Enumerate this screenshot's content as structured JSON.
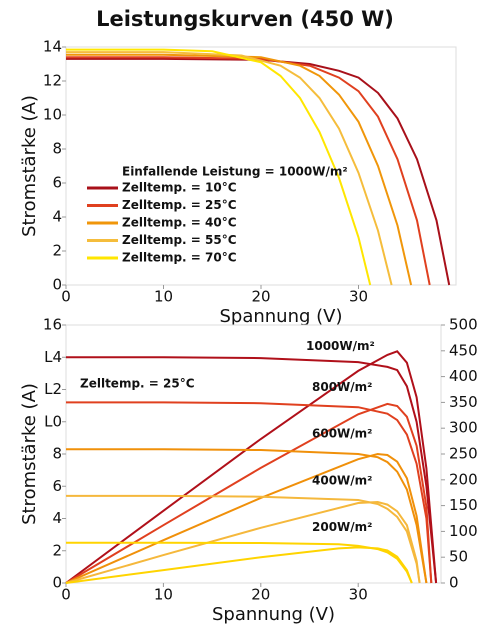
{
  "chart_data": [
    {
      "type": "line",
      "title": "Leistungskurven (450 W)",
      "x_label": "Spannung (V)",
      "y_label": "Stromstärke (A)",
      "xlim": [
        0,
        40
      ],
      "xticks": [
        0,
        10,
        20,
        30
      ],
      "ylim": [
        0,
        14
      ],
      "yticks": [
        0,
        2,
        4,
        6,
        8,
        10,
        12,
        14
      ],
      "legend_title": "Einfallende Leistung = 1000W/m²",
      "legend": "lower-left",
      "series": [
        {
          "name": "Zelltemp. = 10°C",
          "color": "#a8101a",
          "x": [
            0,
            10,
            20,
            25,
            28,
            30,
            32,
            34,
            36,
            38,
            39.3
          ],
          "values": [
            13.3,
            13.3,
            13.25,
            13.0,
            12.6,
            12.2,
            11.3,
            9.8,
            7.4,
            3.8,
            0
          ]
        },
        {
          "name": "Zelltemp. = 25°C",
          "color": "#e0401f",
          "x": [
            0,
            10,
            20,
            25,
            28,
            30,
            32,
            34,
            36,
            37.3
          ],
          "values": [
            13.4,
            13.4,
            13.3,
            12.9,
            12.2,
            11.4,
            9.9,
            7.4,
            3.8,
            0
          ]
        },
        {
          "name": "Zelltemp. = 40°C",
          "color": "#f0960a",
          "x": [
            0,
            10,
            20,
            24,
            26,
            28,
            30,
            32,
            34,
            35.4
          ],
          "values": [
            13.55,
            13.55,
            13.4,
            12.9,
            12.3,
            11.2,
            9.6,
            7.0,
            3.5,
            0
          ]
        },
        {
          "name": "Zelltemp. = 55°C",
          "color": "#f5bd3c",
          "x": [
            0,
            10,
            18,
            22,
            24,
            26,
            28,
            30,
            32,
            33.4
          ],
          "values": [
            13.7,
            13.7,
            13.5,
            12.9,
            12.2,
            11.0,
            9.2,
            6.6,
            3.2,
            0
          ]
        },
        {
          "name": "Zelltemp. = 70°C",
          "color": "#ffe600",
          "x": [
            0,
            10,
            15,
            20,
            22,
            24,
            26,
            28,
            30,
            31.2
          ],
          "values": [
            13.85,
            13.85,
            13.75,
            13.1,
            12.3,
            11.0,
            9.0,
            6.3,
            2.8,
            0
          ]
        }
      ]
    },
    {
      "type": "line",
      "x_label": "Spannung (V)",
      "y_label": "Stromstärke (A)",
      "annotation": "Zelltemp. = 25°C",
      "xlim": [
        0,
        38.5
      ],
      "xticks": [
        0,
        10,
        20,
        30
      ],
      "ylim": [
        0,
        16
      ],
      "yticks": [
        0,
        2,
        4,
        6,
        8,
        {
          "value": 10,
          "label": "L0"
        },
        {
          "value": 12,
          "label": "L2"
        },
        {
          "value": 14,
          "label": "L4"
        },
        16
      ],
      "y2lim": [
        0,
        500
      ],
      "y2ticks": [
        0,
        50,
        100,
        150,
        200,
        250,
        300,
        350,
        400,
        450,
        500
      ],
      "series": [
        {
          "name": "1000W/m²",
          "color": "#b0101a",
          "x": [
            0,
            10,
            20,
            30,
            33,
            34,
            35,
            36,
            37,
            38
          ],
          "values": [
            14,
            14,
            13.95,
            13.7,
            13.4,
            13.2,
            12.2,
            10,
            6,
            0
          ]
        },
        {
          "color": "#b0101a",
          "axis": "y2",
          "x": [
            0,
            10,
            20,
            30,
            33,
            34,
            35,
            36,
            37,
            38
          ],
          "values": [
            0,
            140,
            279,
            411,
            442,
            449,
            427,
            360,
            222,
            0
          ]
        },
        {
          "name": "800W/m²",
          "color": "#e0401f",
          "x": [
            0,
            10,
            20,
            30,
            33,
            34,
            35,
            36,
            37,
            37.5
          ],
          "values": [
            11.2,
            11.2,
            11.15,
            10.9,
            10.5,
            10.1,
            9.2,
            7.4,
            4,
            0
          ]
        },
        {
          "color": "#e0401f",
          "axis": "y2",
          "x": [
            0,
            10,
            20,
            30,
            33,
            34,
            35,
            36,
            37,
            37.5
          ],
          "values": [
            0,
            112,
            223,
            327,
            347,
            343,
            322,
            266,
            148,
            0
          ]
        },
        {
          "name": "600W/m²",
          "color": "#f0900a",
          "x": [
            0,
            10,
            20,
            30,
            32,
            33,
            34,
            35,
            36,
            37
          ],
          "values": [
            8.3,
            8.3,
            8.25,
            8.0,
            7.8,
            7.5,
            6.9,
            5.8,
            3.6,
            0
          ]
        },
        {
          "color": "#f0900a",
          "axis": "y2",
          "x": [
            0,
            10,
            20,
            30,
            32,
            33,
            34,
            35,
            36,
            37
          ],
          "values": [
            0,
            83,
            165,
            240,
            250,
            248,
            235,
            203,
            130,
            0
          ]
        },
        {
          "name": "400W/m²",
          "color": "#f5b83c",
          "x": [
            0,
            10,
            20,
            30,
            32,
            33,
            34,
            35,
            36,
            36.3
          ],
          "values": [
            5.4,
            5.4,
            5.35,
            5.15,
            4.9,
            4.6,
            4.1,
            3.2,
            1.2,
            0
          ]
        },
        {
          "color": "#f5b83c",
          "axis": "y2",
          "x": [
            0,
            10,
            20,
            30,
            32,
            33,
            34,
            35,
            36,
            36.3
          ],
          "values": [
            0,
            54,
            107,
            155,
            157,
            152,
            139,
            112,
            43,
            0
          ]
        },
        {
          "name": "200W/m²",
          "color": "#ffd400",
          "x": [
            0,
            10,
            20,
            28,
            30,
            32,
            33,
            34,
            35,
            35.5
          ],
          "values": [
            2.5,
            2.5,
            2.48,
            2.4,
            2.3,
            2.1,
            1.9,
            1.5,
            0.7,
            0
          ]
        },
        {
          "color": "#ffd400",
          "axis": "y2",
          "x": [
            0,
            10,
            20,
            28,
            30,
            32,
            33,
            34,
            35,
            35.5
          ],
          "values": [
            0,
            25,
            50,
            67,
            69,
            67,
            63,
            51,
            25,
            0
          ]
        }
      ]
    }
  ]
}
